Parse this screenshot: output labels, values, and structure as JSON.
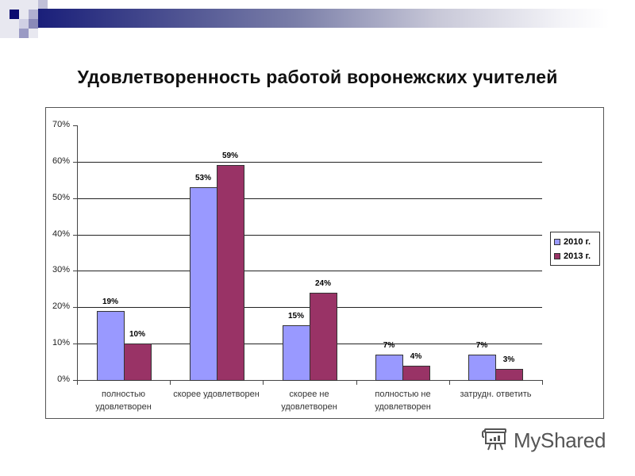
{
  "slide": {
    "title": "Удовлетворенность работой воронежских учителей",
    "brand": "MyShared"
  },
  "colors": {
    "series_2010": "#9999ff",
    "series_2013": "#993366",
    "topbar_start": "#1a1f7a"
  },
  "legend": {
    "items": [
      {
        "label": "2010 г.",
        "color": "#9999ff"
      },
      {
        "label": "2013 г.",
        "color": "#993366"
      }
    ]
  },
  "axis": {
    "y_ticks": [
      "0%",
      "10%",
      "20%",
      "30%",
      "40%",
      "50%",
      "60%",
      "70%"
    ]
  },
  "categories_display": [
    [
      "полностью",
      "удовлетворен"
    ],
    [
      "скорее удовлетворен"
    ],
    [
      "скорее не",
      "удовлетворен"
    ],
    [
      "полностью не",
      "удовлетворен"
    ],
    [
      "затрудн. ответить"
    ]
  ],
  "data_labels": [
    [
      "19%",
      "10%"
    ],
    [
      "53%",
      "59%"
    ],
    [
      "15%",
      "24%"
    ],
    [
      "7%",
      "4%"
    ],
    [
      "7%",
      "3%"
    ]
  ],
  "chart_data": {
    "type": "bar",
    "title": "Удовлетворенность работой воронежских учителей",
    "xlabel": "",
    "ylabel": "",
    "categories": [
      "полностью удовлетворен",
      "скорее удовлетворен",
      "скорее не удовлетворен",
      "полностью не удовлетворен",
      "затрудн. ответить"
    ],
    "series": [
      {
        "name": "2010 г.",
        "values": [
          19,
          53,
          15,
          7,
          7
        ],
        "color": "#9999ff"
      },
      {
        "name": "2013 г.",
        "values": [
          10,
          59,
          24,
          4,
          3
        ],
        "color": "#993366"
      }
    ],
    "ylim": [
      0,
      70
    ],
    "y_unit": "%",
    "grid": true,
    "legend_position": "right",
    "data_labels": true
  }
}
